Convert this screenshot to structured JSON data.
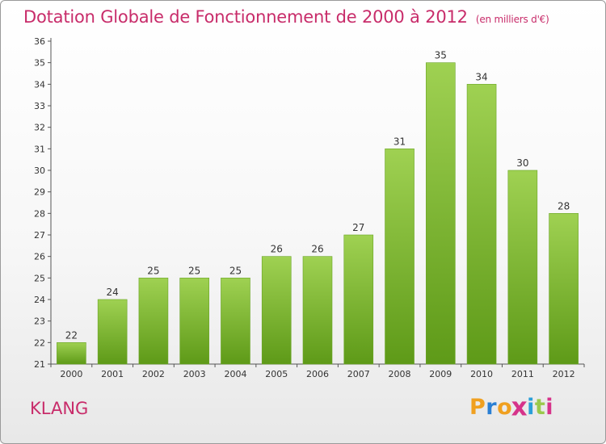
{
  "header": {
    "title": "Dotation Globale de Fonctionnement de 2000 à 2012",
    "subtitle": "(en milliers d'€)"
  },
  "footer": {
    "commune": "KLANG",
    "logo_text": "Proxiti"
  },
  "colors": {
    "title": "#c82c6a",
    "bar_top": "#9fd152",
    "bar_bottom": "#5e9a18",
    "logo_letters": [
      "#f0a020",
      "#2a7fd4",
      "#f0a020",
      "#d6338a",
      "#2a9fd8",
      "#9ac94b",
      "#d6338a"
    ]
  },
  "chart_data": {
    "type": "bar",
    "categories": [
      "2000",
      "2001",
      "2002",
      "2003",
      "2004",
      "2005",
      "2006",
      "2007",
      "2008",
      "2009",
      "2010",
      "2011",
      "2012"
    ],
    "values": [
      22,
      24,
      25,
      25,
      25,
      26,
      26,
      27,
      31,
      35,
      34,
      30,
      28
    ],
    "ylim": [
      21,
      36
    ],
    "yticks": [
      21,
      22,
      23,
      24,
      25,
      26,
      27,
      28,
      29,
      30,
      31,
      32,
      33,
      34,
      35,
      36
    ],
    "grid": false,
    "data_labels": true
  }
}
